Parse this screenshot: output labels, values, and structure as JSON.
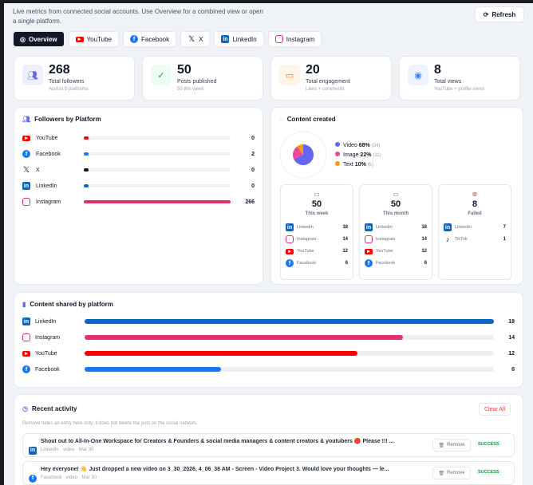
{
  "intro": "Live metrics from connected social accounts. Use Overview for a combined view or open a single platform.",
  "refresh_label": "Refresh",
  "tabs": [
    {
      "label": "Overview",
      "icon": "globe-icon"
    },
    {
      "label": "YouTube",
      "icon": "youtube-icon"
    },
    {
      "label": "Facebook",
      "icon": "facebook-icon"
    },
    {
      "label": "X",
      "icon": "x-icon"
    },
    {
      "label": "LinkedIn",
      "icon": "linkedin-icon"
    },
    {
      "label": "Instagram",
      "icon": "instagram-icon"
    }
  ],
  "stats": [
    {
      "value": "268",
      "label": "Total followers",
      "sub": "Across 5 platforms",
      "color": "#6366f1"
    },
    {
      "value": "50",
      "label": "Posts published",
      "sub": "50 this week",
      "color": "#16a34a"
    },
    {
      "value": "20",
      "label": "Total engagement",
      "sub": "Likes + comments",
      "color": "#f97316"
    },
    {
      "value": "8",
      "label": "Total views",
      "sub": "YouTube + profile views",
      "color": "#3b82f6"
    }
  ],
  "followers": {
    "title": "Followers by Platform",
    "max": 266,
    "items": [
      {
        "name": "YouTube",
        "value": 0,
        "color": "#ff0000"
      },
      {
        "name": "Facebook",
        "value": 2,
        "color": "#1877f2"
      },
      {
        "name": "X",
        "value": 0,
        "color": "#111111"
      },
      {
        "name": "LinkedIn",
        "value": 0,
        "color": "#0a66c2"
      },
      {
        "name": "Instagram",
        "value": 266,
        "color": "#e1306c"
      }
    ]
  },
  "content_created": {
    "title": "Content created",
    "legend": [
      {
        "label": "Video",
        "pct": "68%",
        "count": "(34)",
        "value": 34,
        "color": "#6366f1"
      },
      {
        "label": "Image",
        "pct": "22%",
        "count": "(11)",
        "value": 11,
        "color": "#ec4899"
      },
      {
        "label": "Text",
        "pct": "10%",
        "count": "(5)",
        "value": 5,
        "color": "#f59e0b"
      }
    ],
    "boxes": [
      {
        "value": "50",
        "label": "This week",
        "icon": "calendar-icon",
        "rows": [
          {
            "name": "LinkedIn",
            "value": "18"
          },
          {
            "name": "Instagram",
            "value": "14"
          },
          {
            "name": "YouTube",
            "value": "12"
          },
          {
            "name": "Facebook",
            "value": "6"
          }
        ]
      },
      {
        "value": "50",
        "label": "This month",
        "icon": "calendar-icon",
        "rows": [
          {
            "name": "LinkedIn",
            "value": "18"
          },
          {
            "name": "Instagram",
            "value": "14"
          },
          {
            "name": "YouTube",
            "value": "12"
          },
          {
            "name": "Facebook",
            "value": "6"
          }
        ]
      },
      {
        "value": "8",
        "label": "Failed",
        "icon": "x-circle-icon",
        "rows": [
          {
            "name": "LinkedIn",
            "value": "7"
          },
          {
            "name": "TikTok",
            "value": "1"
          }
        ]
      }
    ]
  },
  "shared": {
    "title": "Content shared by platform",
    "max": 18,
    "items": [
      {
        "name": "LinkedIn",
        "value": 18,
        "color": "#0a66c2"
      },
      {
        "name": "Instagram",
        "value": 14,
        "color": "#e1306c"
      },
      {
        "name": "YouTube",
        "value": 12,
        "color": "#ff0000"
      },
      {
        "name": "Facebook",
        "value": 6,
        "color": "#1877f2"
      }
    ]
  },
  "activity": {
    "title": "Recent activity",
    "clear_label": "Clear All",
    "note": "Remove hides an entry here only; it does not delete the post on the social network.",
    "items": [
      {
        "platform": "linkedin",
        "text": "Shout out to All-In-One Workspace for Creators & Founders & social media managers & content creators & youtubers 🔴 Please !!! ...",
        "meta": "LinkedIn · video · Mar 30",
        "remove": "Remove",
        "status": "SUCCESS"
      },
      {
        "platform": "facebook",
        "text": "Hey everyone! 👋 Just dropped a new video on 3_30_2026, 4_06_38 AM - Screen - Video Project 3. Would love your thoughts — le...",
        "meta": "Facebook · video · Mar 30",
        "remove": "Remove",
        "status": "SUCCESS"
      }
    ]
  }
}
